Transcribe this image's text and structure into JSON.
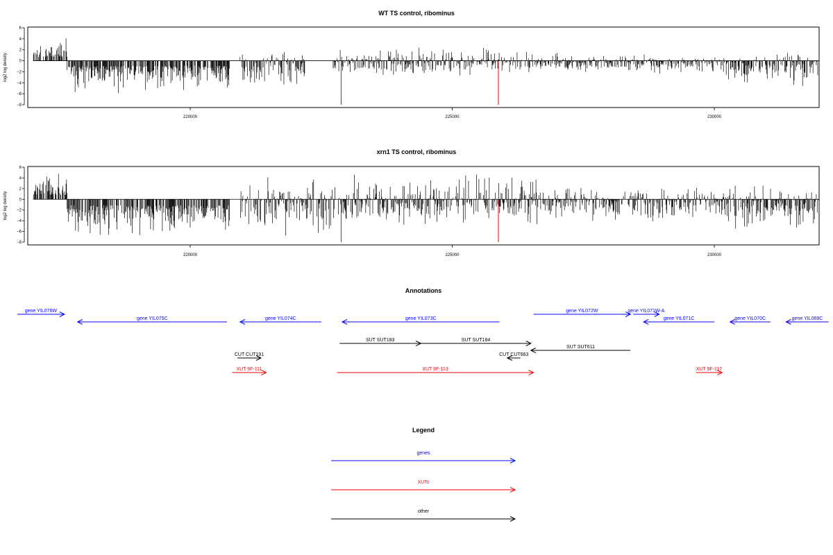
{
  "chart_data": [
    {
      "type": "bar",
      "title": "WT TS control, ribominus",
      "ylabel": "log2 log density",
      "xlabel": "",
      "xlim": [
        216900,
        232000
      ],
      "ylim": [
        -8,
        6
      ],
      "x_ticks": [
        220000,
        225000,
        230000
      ],
      "y_ticks": [
        -8,
        -6,
        -4,
        -2,
        0,
        2,
        4,
        6
      ],
      "grid": false,
      "colors": {
        "bars": "#000000",
        "markers": "#ff0000"
      },
      "markers": [
        {
          "x": 222880,
          "y": -8
        },
        {
          "x": 225880,
          "y": -8
        }
      ],
      "segments": [
        {
          "x_start": 217000,
          "x_end": 217650,
          "value_range": [
            0,
            4.5
          ]
        },
        {
          "x_start": 217650,
          "x_end": 220750,
          "value_range": [
            -6,
            0
          ]
        },
        {
          "x_start": 220950,
          "x_end": 222200,
          "value_range": [
            -5,
            2.5
          ]
        },
        {
          "x_start": 222700,
          "x_end": 226700,
          "value_range": [
            -3,
            3
          ]
        },
        {
          "x_start": 226700,
          "x_end": 230200,
          "value_range": [
            -2.5,
            1.5
          ]
        },
        {
          "x_start": 230200,
          "x_end": 231100,
          "value_range": [
            -4.5,
            1
          ]
        },
        {
          "x_start": 231100,
          "x_end": 232000,
          "value_range": [
            -5,
            2
          ]
        }
      ]
    },
    {
      "type": "bar",
      "title": "xrn1 TS control, ribominus",
      "ylabel": "log2 log density",
      "xlabel": "",
      "xlim": [
        216900,
        232000
      ],
      "ylim": [
        -8,
        6
      ],
      "x_ticks": [
        220000,
        225000,
        230000
      ],
      "y_ticks": [
        -8,
        -6,
        -4,
        -2,
        0,
        2,
        4,
        6
      ],
      "grid": false,
      "colors": {
        "bars": "#000000",
        "markers": "#ff0000"
      },
      "markers": [
        {
          "x": 222880,
          "y": -8
        },
        {
          "x": 225880,
          "y": -8
        }
      ],
      "segments": [
        {
          "x_start": 217000,
          "x_end": 217650,
          "value_range": [
            0,
            5.5
          ]
        },
        {
          "x_start": 217650,
          "x_end": 220750,
          "value_range": [
            -7.5,
            0
          ]
        },
        {
          "x_start": 220950,
          "x_end": 222700,
          "value_range": [
            -7,
            5
          ]
        },
        {
          "x_start": 222700,
          "x_end": 226700,
          "value_range": [
            -5,
            5.5
          ]
        },
        {
          "x_start": 226700,
          "x_end": 230200,
          "value_range": [
            -4.5,
            3
          ]
        },
        {
          "x_start": 230200,
          "x_end": 231100,
          "value_range": [
            -6,
            3
          ]
        },
        {
          "x_start": 231100,
          "x_end": 232000,
          "value_range": [
            -5.5,
            2
          ]
        }
      ]
    }
  ],
  "annotations": {
    "title": "Annotations",
    "colors": {
      "gene": "#0000ff",
      "xut": "#ff0000",
      "other": "#000000"
    },
    "features": [
      {
        "label": "gene YIL076W",
        "x_start": 216700,
        "x_end": 217600,
        "strand": "+",
        "kind": "gene"
      },
      {
        "label": "gene YIL075C",
        "x_start": 217850,
        "x_end": 220700,
        "strand": "-",
        "kind": "gene"
      },
      {
        "label": "gene YIL074C",
        "x_start": 220950,
        "x_end": 222500,
        "strand": "-",
        "kind": "gene"
      },
      {
        "label": "gene YIL073C",
        "x_start": 222900,
        "x_end": 225900,
        "strand": "-",
        "kind": "gene"
      },
      {
        "label": "gene YIL072W",
        "x_start": 226550,
        "x_end": 228400,
        "strand": "+",
        "kind": "gene"
      },
      {
        "label": "gene YIL071W-A",
        "x_start": 228450,
        "x_end": 228950,
        "strand": "+",
        "kind": "gene"
      },
      {
        "label": "gene YIL071C",
        "x_start": 228650,
        "x_end": 230000,
        "strand": "-",
        "kind": "gene"
      },
      {
        "label": "gene YIL070C",
        "x_start": 230300,
        "x_end": 231070,
        "strand": "-",
        "kind": "gene"
      },
      {
        "label": "gene YIL069C",
        "x_start": 231370,
        "x_end": 232180,
        "strand": "-",
        "kind": "gene"
      },
      {
        "label": "SUT SUT183",
        "x_start": 222850,
        "x_end": 224400,
        "strand": "+",
        "kind": "other"
      },
      {
        "label": "SUT SUT184",
        "x_start": 224400,
        "x_end": 226500,
        "strand": "+",
        "kind": "other"
      },
      {
        "label": "SUT SUT611",
        "x_start": 226500,
        "x_end": 228400,
        "strand": "-",
        "kind": "other"
      },
      {
        "label": "CUT CUT191",
        "x_start": 220900,
        "x_end": 221350,
        "strand": "+",
        "kind": "other"
      },
      {
        "label": "CUT CUT663",
        "x_start": 226050,
        "x_end": 226300,
        "strand": "-",
        "kind": "other"
      },
      {
        "label": "XUT 9F-111",
        "x_start": 220800,
        "x_end": 221450,
        "strand": "+",
        "kind": "xut"
      },
      {
        "label": "XUT 9F-113",
        "x_start": 222800,
        "x_end": 226550,
        "strand": "+",
        "kind": "xut"
      },
      {
        "label": "XUT 9F-117",
        "x_start": 229650,
        "x_end": 230150,
        "strand": "+",
        "kind": "xut"
      }
    ]
  },
  "legend": {
    "title": "Legend",
    "items": [
      {
        "label": "genes",
        "color": "#0000ff"
      },
      {
        "label": "XUTs",
        "color": "#ff0000"
      },
      {
        "label": "other",
        "color": "#000000"
      }
    ]
  }
}
